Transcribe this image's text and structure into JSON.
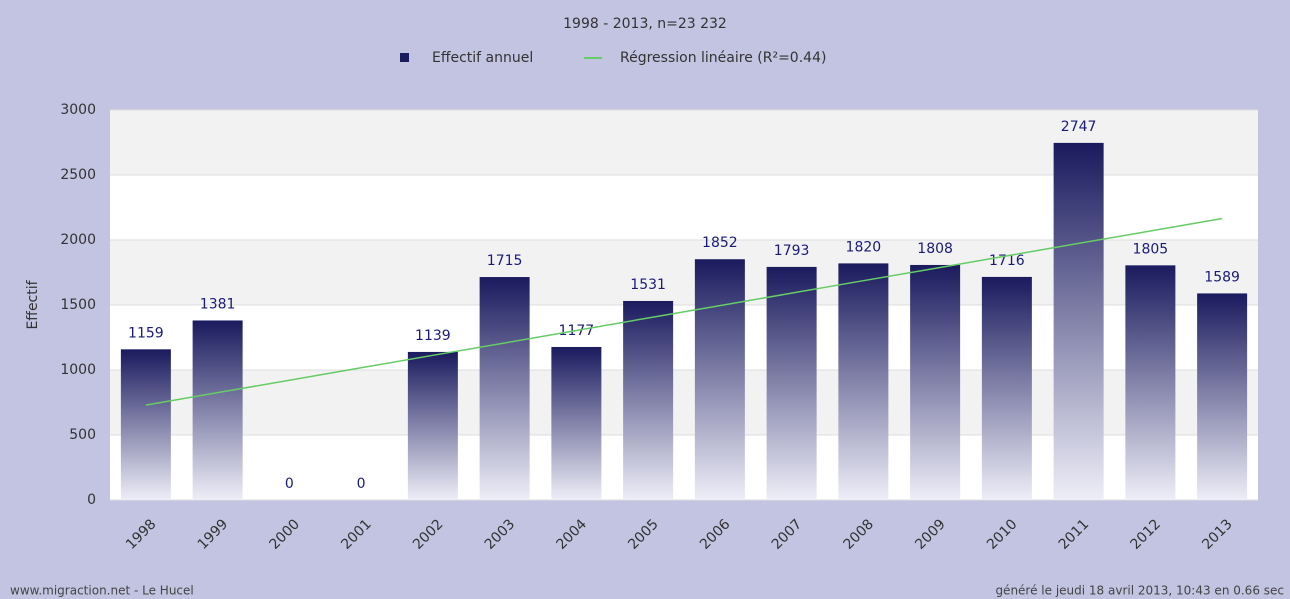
{
  "chart_data": {
    "type": "bar",
    "title": "1998 - 2013, n=23 232",
    "y_label": "Effectif",
    "categories": [
      "1998",
      "1999",
      "2000",
      "2001",
      "2002",
      "2003",
      "2004",
      "2005",
      "2006",
      "2007",
      "2008",
      "2009",
      "2010",
      "2011",
      "2012",
      "2013"
    ],
    "series": [
      {
        "name": "Effectif annuel",
        "type": "bar",
        "color": "#1a1a5e",
        "values": [
          1159,
          1381,
          0,
          0,
          1139,
          1715,
          1177,
          1531,
          1852,
          1793,
          1820,
          1808,
          1716,
          2747,
          1805,
          1589
        ]
      },
      {
        "name": "Régression linéaire (R²=0.44)",
        "type": "line",
        "color": "#66cc66",
        "values": [
          730,
          826,
          921,
          1017,
          1113,
          1208,
          1304,
          1400,
          1495,
          1591,
          1687,
          1782,
          1878,
          1974,
          2069,
          2165
        ]
      }
    ],
    "ylim": [
      0,
      3000
    ],
    "yticks": [
      0,
      500,
      1000,
      1500,
      2000,
      2500,
      3000
    ],
    "grid": true,
    "footer": {
      "left": "www.migraction.net - Le Hucel",
      "right": "généré le jeudi 18 avril 2013, 10:43 en 0.66 sec"
    }
  }
}
